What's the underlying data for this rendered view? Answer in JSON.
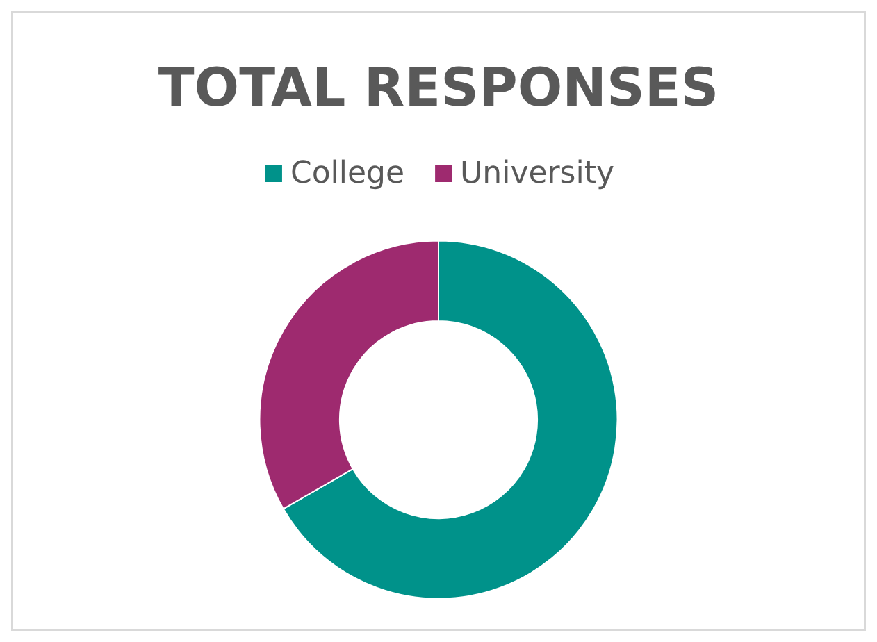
{
  "chart_data": {
    "type": "donut",
    "title": "TOTAL RESPONSES",
    "categories": [
      "College",
      "University"
    ],
    "values": [
      66.7,
      33.3
    ],
    "colors": [
      "#00928a",
      "#9e2a6f"
    ],
    "legend": "top"
  }
}
